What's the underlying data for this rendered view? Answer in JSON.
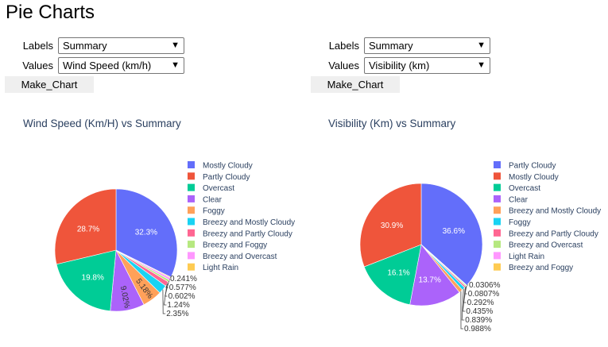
{
  "page": {
    "title": "Pie Charts"
  },
  "left_form": {
    "labels_label": "Labels",
    "labels_value": "Summary",
    "values_label": "Values",
    "values_value": "Wind Speed (km/h)",
    "button": "Make_Chart"
  },
  "right_form": {
    "labels_label": "Labels",
    "labels_value": "Summary",
    "values_label": "Values",
    "values_value": "Visibility (km)",
    "button": "Make_Chart"
  },
  "chart_data": [
    {
      "type": "pie",
      "title": "Wind Speed (Km/H) vs Summary",
      "labels": [
        "Mostly Cloudy",
        "Partly Cloudy",
        "Overcast",
        "Clear",
        "Foggy",
        "Breezy and Mostly Cloudy",
        "Breezy and Partly Cloudy",
        "Breezy and Foggy",
        "Breezy and Overcast",
        "Light Rain"
      ],
      "slice_order": [
        "Mostly Cloudy",
        "Light Rain",
        "Breezy and Overcast",
        "Breezy and Foggy",
        "Breezy and Partly Cloudy",
        "Breezy and Mostly Cloudy",
        "Foggy",
        "Clear",
        "Overcast",
        "Partly Cloudy"
      ],
      "values": [
        32.3,
        0.241,
        0.577,
        0.602,
        1.24,
        2.35,
        5.18,
        9.02,
        19.8,
        28.7
      ],
      "value_labels": [
        "32.3%",
        "0.241%",
        "0.577%",
        "0.602%",
        "1.24%",
        "2.35%",
        "5.18%",
        "9.02%",
        "19.8%",
        "28.7%"
      ],
      "legend": [
        "Mostly Cloudy",
        "Partly Cloudy",
        "Overcast",
        "Clear",
        "Foggy",
        "Breezy and Mostly Cloudy",
        "Breezy and Partly Cloudy",
        "Breezy and Foggy",
        "Breezy and Overcast",
        "Light Rain"
      ],
      "colors": {
        "Mostly Cloudy": "#636efa",
        "Partly Cloudy": "#ef553b",
        "Overcast": "#00cc96",
        "Clear": "#ab63fa",
        "Foggy": "#ffa15a",
        "Breezy and Mostly Cloudy": "#19d3f3",
        "Breezy and Partly Cloudy": "#ff6692",
        "Breezy and Foggy": "#b6e880",
        "Breezy and Overcast": "#ff97ff",
        "Light Rain": "#fecb52"
      }
    },
    {
      "type": "pie",
      "title": "Visibility (Km) vs Summary",
      "labels": [
        "Partly Cloudy",
        "Mostly Cloudy",
        "Overcast",
        "Clear",
        "Breezy and Mostly Cloudy",
        "Foggy",
        "Breezy and Partly Cloudy",
        "Breezy and Overcast",
        "Light Rain",
        "Breezy and Foggy"
      ],
      "slice_order": [
        "Partly Cloudy",
        "Breezy and Foggy",
        "Light Rain",
        "Breezy and Overcast",
        "Breezy and Partly Cloudy",
        "Foggy",
        "Breezy and Mostly Cloudy",
        "Clear",
        "Overcast",
        "Mostly Cloudy"
      ],
      "values": [
        36.6,
        0.0306,
        0.0807,
        0.292,
        0.435,
        0.839,
        0.988,
        13.7,
        16.1,
        30.9
      ],
      "value_labels": [
        "36.6%",
        "0.0306%",
        "0.0807%",
        "0.292%",
        "0.435%",
        "0.839%",
        "0.988%",
        "13.7%",
        "16.1%",
        "30.9%"
      ],
      "legend": [
        "Partly Cloudy",
        "Mostly Cloudy",
        "Overcast",
        "Clear",
        "Breezy and Mostly Cloudy",
        "Foggy",
        "Breezy and Partly Cloudy",
        "Breezy and Overcast",
        "Light Rain",
        "Breezy and Foggy"
      ],
      "colors": {
        "Partly Cloudy": "#636efa",
        "Mostly Cloudy": "#ef553b",
        "Overcast": "#00cc96",
        "Clear": "#ab63fa",
        "Breezy and Mostly Cloudy": "#ffa15a",
        "Foggy": "#19d3f3",
        "Breezy and Partly Cloudy": "#ff6692",
        "Breezy and Overcast": "#b6e880",
        "Light Rain": "#ff97ff",
        "Breezy and Foggy": "#fecb52"
      }
    }
  ]
}
